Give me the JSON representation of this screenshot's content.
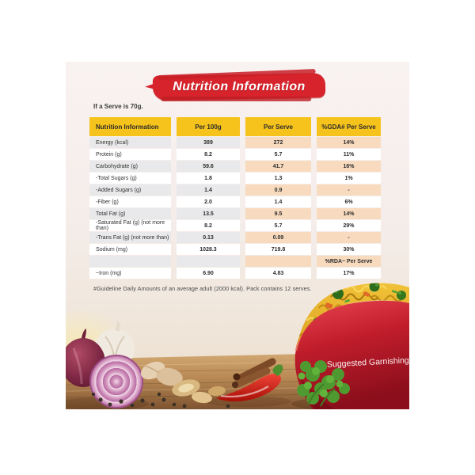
{
  "header": {
    "title": "Nutrition Information",
    "serve_note": "If a Serve is 70g."
  },
  "table": {
    "columns": [
      "Nutrition Information",
      "Per 100g",
      "Per Serve",
      "%GDA# Per Serve"
    ],
    "rows": [
      {
        "label": "Energy (kcal)",
        "per100g": "389",
        "perServe": "272",
        "gda": "14%"
      },
      {
        "label": "Protein (g)",
        "per100g": "8.2",
        "perServe": "5.7",
        "gda": "11%"
      },
      {
        "label": "Carbohydrate (g)",
        "per100g": "59.6",
        "perServe": "41.7",
        "gda": "16%"
      },
      {
        "label": "-Total Sugars (g)",
        "per100g": "1.8",
        "perServe": "1.3",
        "gda": "1%"
      },
      {
        "label": "-Added Sugars (g)",
        "per100g": "1.4",
        "perServe": "0.9",
        "gda": "-"
      },
      {
        "label": "-Fiber (g)",
        "per100g": "2.0",
        "perServe": "1.4",
        "gda": "6%"
      },
      {
        "label": "Total Fat (g)",
        "per100g": "13.5",
        "perServe": "9.5",
        "gda": "14%"
      },
      {
        "label": "-Saturated Fat (g) (not more than)",
        "per100g": "8.2",
        "perServe": "5.7",
        "gda": "29%"
      },
      {
        "label": "-Trans Fat (g) (not more than)",
        "per100g": "0.13",
        "perServe": "0.09",
        "gda": "-"
      },
      {
        "label": "Sodium (mg)",
        "per100g": "1028.3",
        "perServe": "719.8",
        "gda": "30%"
      },
      {
        "label": "",
        "per100g": "",
        "perServe": "",
        "gda": "%RDA~ Per Serve",
        "special": "rda-header"
      },
      {
        "label": "~Iron (mg)",
        "per100g": "6.90",
        "perServe": "4.83",
        "gda": "17%"
      }
    ],
    "footnote": "#Guideline Daily Amounts of an average adult (2000 kcal). Pack contains 12 serves."
  },
  "photo": {
    "bowl_caption": "Suggested Garnishing",
    "depicts": "red bowl of garnished noodles with broccoli and carrot, red onions, garlic, ginger, peppercorns, cinnamon sticks, red chili and coriander on a wooden table"
  },
  "colors": {
    "banner_red": "#d7232b",
    "header_yellow": "#f6c31c",
    "cell_gray": "#e9e9eb",
    "cell_peach": "#f8dbbe",
    "bowl_red": "#b01622",
    "noodle_yellow": "#edba2e"
  }
}
